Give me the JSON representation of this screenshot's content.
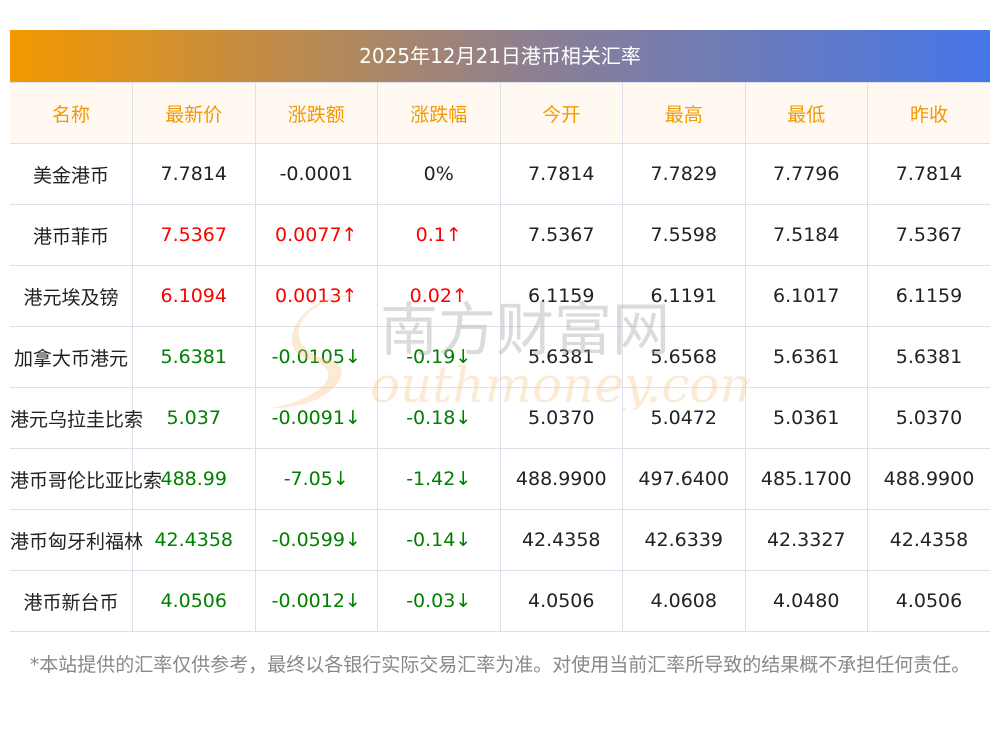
{
  "title": "2025年12月21日港币相关汇率",
  "columns": [
    "名称",
    "最新价",
    "涨跌额",
    "涨跌幅",
    "今开",
    "最高",
    "最低",
    "昨收"
  ],
  "rows": [
    {
      "name": "美金港币",
      "latest": "7.7814",
      "change": "-0.0001",
      "pct": "0%",
      "open": "7.7814",
      "high": "7.7829",
      "low": "7.7796",
      "prev": "7.7814",
      "trend": "flat"
    },
    {
      "name": "港币菲币",
      "latest": "7.5367",
      "change": "0.0077↑",
      "pct": "0.1↑",
      "open": "7.5367",
      "high": "7.5598",
      "low": "7.5184",
      "prev": "7.5367",
      "trend": "up"
    },
    {
      "name": "港元埃及镑",
      "latest": "6.1094",
      "change": "0.0013↑",
      "pct": "0.02↑",
      "open": "6.1159",
      "high": "6.1191",
      "low": "6.1017",
      "prev": "6.1159",
      "trend": "up"
    },
    {
      "name": "加拿大币港元",
      "latest": "5.6381",
      "change": "-0.0105↓",
      "pct": "-0.19↓",
      "open": "5.6381",
      "high": "5.6568",
      "low": "5.6361",
      "prev": "5.6381",
      "trend": "down"
    },
    {
      "name": "港元乌拉圭比索",
      "latest": "5.037",
      "change": "-0.0091↓",
      "pct": "-0.18↓",
      "open": "5.0370",
      "high": "5.0472",
      "low": "5.0361",
      "prev": "5.0370",
      "trend": "down"
    },
    {
      "name": "港币哥伦比亚比索",
      "latest": "488.99",
      "change": "-7.05↓",
      "pct": "-1.42↓",
      "open": "488.9900",
      "high": "497.6400",
      "low": "485.1700",
      "prev": "488.9900",
      "trend": "down"
    },
    {
      "name": "港币匈牙利福林",
      "latest": "42.4358",
      "change": "-0.0599↓",
      "pct": "-0.14↓",
      "open": "42.4358",
      "high": "42.6339",
      "low": "42.3327",
      "prev": "42.4358",
      "trend": "down"
    },
    {
      "name": "港币新台币",
      "latest": "4.0506",
      "change": "-0.0012↓",
      "pct": "-0.03↓",
      "open": "4.0506",
      "high": "4.0608",
      "low": "4.0480",
      "prev": "4.0506",
      "trend": "down"
    }
  ],
  "watermark": {
    "cn": "南方财富网",
    "en": "southmoney.com"
  },
  "footer": "*本站提供的汇率仅供参考，最终以各银行实际交易汇率为准。对使用当前汇率所导致的结果概不承担任何责任。"
}
